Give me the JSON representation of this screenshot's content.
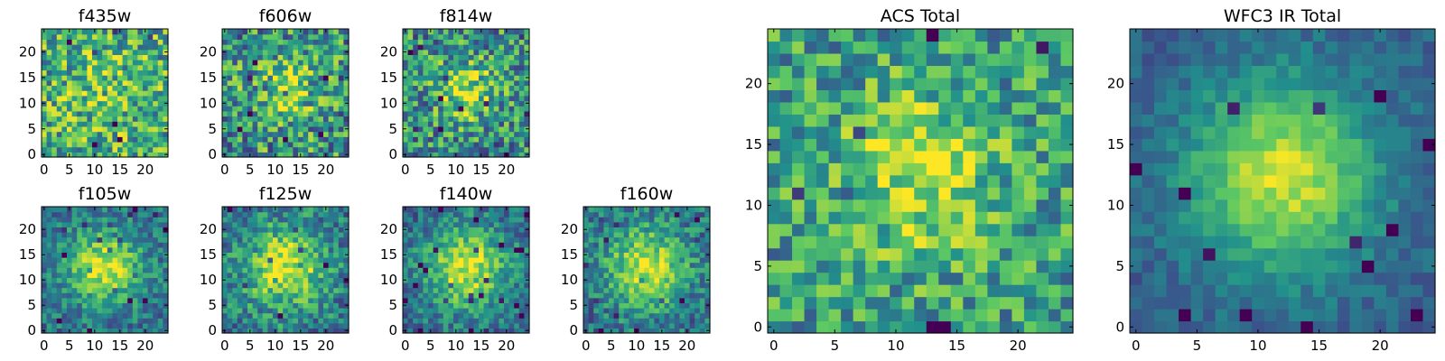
{
  "colormap": [
    "#440154",
    "#3b528b",
    "#21918c",
    "#5ec962",
    "#fde725"
  ],
  "chart_data": [
    {
      "type": "heatmap",
      "title": "f435w",
      "xticks": [
        "0",
        "5",
        "10",
        "15",
        "20"
      ],
      "yticks": [
        "0",
        "5",
        "10",
        "15",
        "20"
      ],
      "xlim": [
        -0.5,
        24.5
      ],
      "ylim": [
        -0.5,
        24.5
      ],
      "grid": "25x25 pixels",
      "seed": 11,
      "amp": 0.1,
      "sigma": 6.0,
      "noise": 0.34,
      "base": 0.62
    },
    {
      "type": "heatmap",
      "title": "f606w",
      "xticks": [
        "0",
        "5",
        "10",
        "15",
        "20"
      ],
      "yticks": [
        "0",
        "5",
        "10",
        "15",
        "20"
      ],
      "xlim": [
        -0.5,
        24.5
      ],
      "ylim": [
        -0.5,
        24.5
      ],
      "grid": "25x25 pixels",
      "seed": 23,
      "amp": 0.3,
      "sigma": 4.5,
      "noise": 0.36,
      "base": 0.52
    },
    {
      "type": "heatmap",
      "title": "f814w",
      "xticks": [
        "0",
        "5",
        "10",
        "15",
        "20"
      ],
      "yticks": [
        "0",
        "5",
        "10",
        "15",
        "20"
      ],
      "xlim": [
        -0.5,
        24.5
      ],
      "ylim": [
        -0.5,
        24.5
      ],
      "grid": "25x25 pixels",
      "seed": 37,
      "amp": 0.38,
      "sigma": 4.0,
      "noise": 0.34,
      "base": 0.5
    },
    {
      "type": "heatmap",
      "title": "f105w",
      "xticks": [
        "0",
        "5",
        "10",
        "15",
        "20"
      ],
      "yticks": [
        "0",
        "5",
        "10",
        "15",
        "20"
      ],
      "xlim": [
        -0.5,
        24.5
      ],
      "ylim": [
        -0.5,
        24.5
      ],
      "grid": "25x25 pixels",
      "seed": 41,
      "amp": 0.55,
      "sigma": 5.0,
      "noise": 0.2,
      "base": 0.38
    },
    {
      "type": "heatmap",
      "title": "f125w",
      "xticks": [
        "0",
        "5",
        "10",
        "15",
        "20"
      ],
      "yticks": [
        "0",
        "5",
        "10",
        "15",
        "20"
      ],
      "xlim": [
        -0.5,
        24.5
      ],
      "ylim": [
        -0.5,
        24.5
      ],
      "grid": "25x25 pixels",
      "seed": 53,
      "amp": 0.55,
      "sigma": 5.5,
      "noise": 0.24,
      "base": 0.4
    },
    {
      "type": "heatmap",
      "title": "f140w",
      "xticks": [
        "0",
        "5",
        "10",
        "15",
        "20"
      ],
      "yticks": [
        "0",
        "5",
        "10",
        "15",
        "20"
      ],
      "xlim": [
        -0.5,
        24.5
      ],
      "ylim": [
        -0.5,
        24.5
      ],
      "grid": "25x25 pixels",
      "seed": 67,
      "amp": 0.58,
      "sigma": 5.5,
      "noise": 0.2,
      "base": 0.36
    },
    {
      "type": "heatmap",
      "title": "f160w",
      "xticks": [
        "0",
        "5",
        "10",
        "15",
        "20"
      ],
      "yticks": [
        "0",
        "5",
        "10",
        "15",
        "20"
      ],
      "xlim": [
        -0.5,
        24.5
      ],
      "ylim": [
        -0.5,
        24.5
      ],
      "grid": "25x25 pixels",
      "seed": 79,
      "amp": 0.55,
      "sigma": 5.5,
      "noise": 0.22,
      "base": 0.38
    },
    {
      "type": "heatmap",
      "title": "ACS Total",
      "xticks": [
        "0",
        "5",
        "10",
        "15",
        "20"
      ],
      "yticks": [
        "0",
        "5",
        "10",
        "15",
        "20"
      ],
      "xlim": [
        -0.5,
        24.5
      ],
      "ylim": [
        -0.5,
        24.5
      ],
      "grid": "25x25 pixels",
      "seed": 97,
      "amp": 0.35,
      "sigma": 4.5,
      "noise": 0.28,
      "base": 0.55
    },
    {
      "type": "heatmap",
      "title": "WFC3 IR Total",
      "xticks": [
        "0",
        "5",
        "10",
        "15",
        "20"
      ],
      "yticks": [
        "0",
        "5",
        "10",
        "15",
        "20"
      ],
      "xlim": [
        -0.5,
        24.5
      ],
      "ylim": [
        -0.5,
        24.5
      ],
      "grid": "25x25 pixels",
      "seed": 131,
      "amp": 0.62,
      "sigma": 5.5,
      "noise": 0.1,
      "base": 0.3
    }
  ]
}
